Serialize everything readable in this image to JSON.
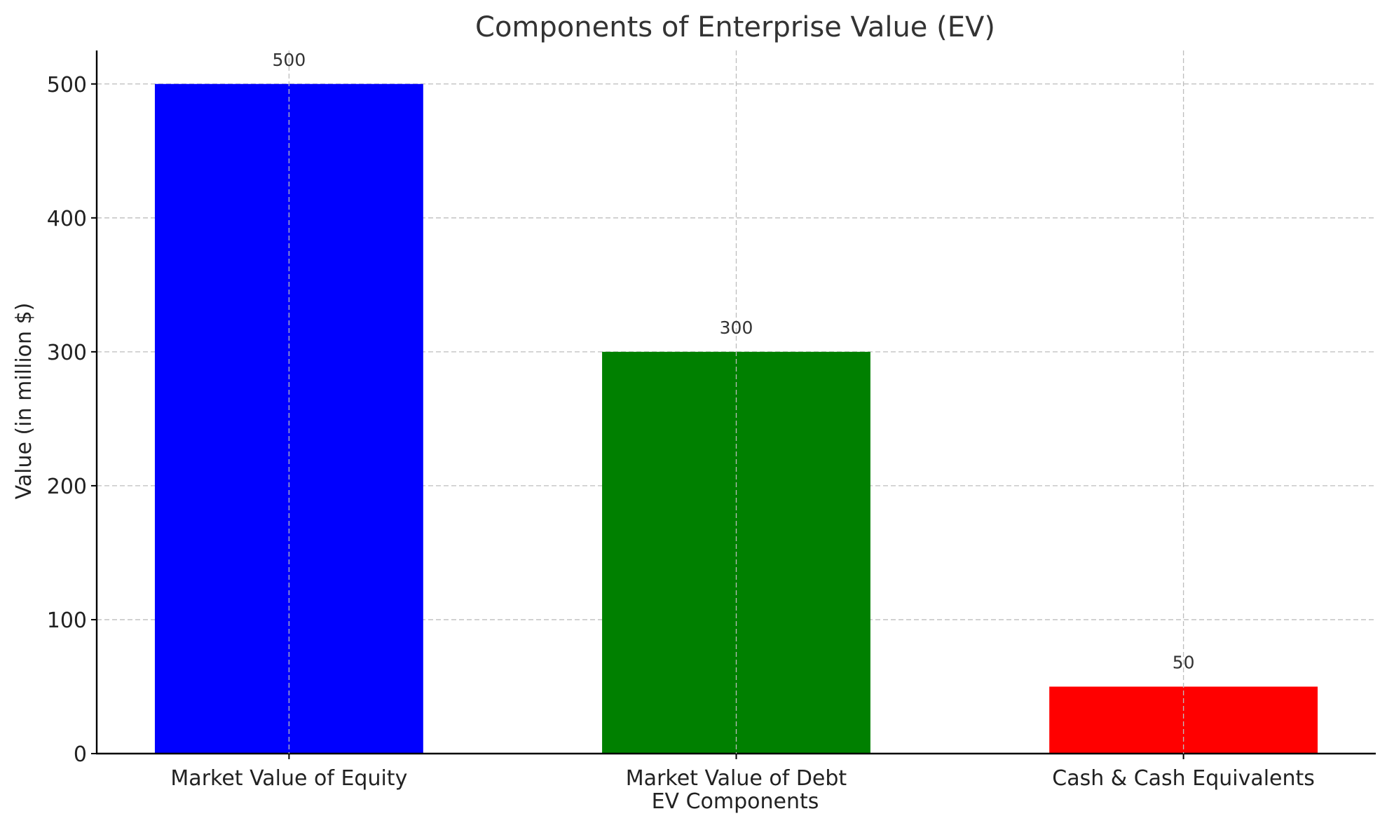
{
  "chart_data": {
    "type": "bar",
    "title": "Components of Enterprise Value (EV)",
    "xlabel": "EV Components",
    "ylabel": "Value (in million $)",
    "categories": [
      "Market Value of Equity",
      "Market Value of Debt",
      "Cash & Cash Equivalents"
    ],
    "values": [
      500,
      300,
      50
    ],
    "data_labels": [
      "500",
      "300",
      "50"
    ],
    "colors": [
      "#0000ff",
      "#008000",
      "#ff0000"
    ],
    "ylim": [
      0,
      525
    ],
    "yticks": [
      0,
      100,
      200,
      300,
      400,
      500
    ],
    "ytick_labels": [
      "0",
      "100",
      "200",
      "300",
      "400",
      "500"
    ],
    "grid": true,
    "legend": "none"
  }
}
